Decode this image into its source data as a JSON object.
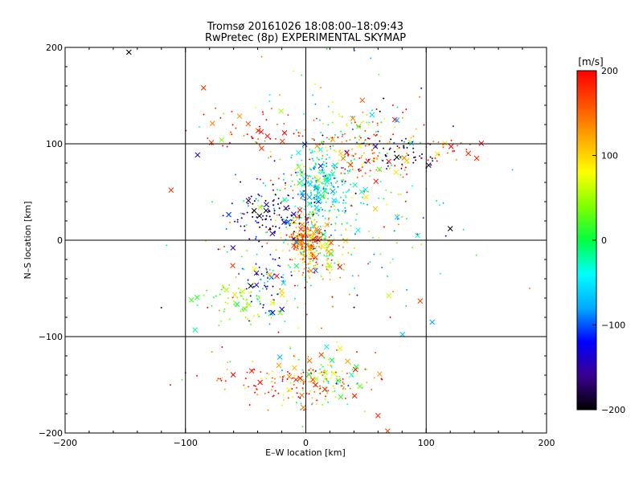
{
  "chart_data": {
    "type": "scatter",
    "title": "Tromsø 20161026 18:08:00–18:09:43",
    "subtitle": "RwPretec (8p) EXPERIMENTAL SKYMAP",
    "xlabel": "E–W location [km]",
    "ylabel": "N–S location [km]",
    "xlim": [
      -200,
      200
    ],
    "ylim": [
      -200,
      200
    ],
    "xticks": [
      "−200",
      "−100",
      "0",
      "100",
      "200"
    ],
    "yticks": [
      "−200",
      "−100",
      "0",
      "100",
      "200"
    ],
    "grid": true,
    "markers": [
      "dot",
      "x"
    ],
    "colorbar": {
      "label": "[m/s]",
      "range": [
        -200,
        200
      ],
      "ticks": [
        "−200",
        "−100",
        "0",
        "100",
        "200"
      ],
      "colors": [
        "#000000",
        "#3a0090",
        "#0000ff",
        "#00aaff",
        "#00ffff",
        "#00ff40",
        "#80ff00",
        "#ffff00",
        "#ffaa00",
        "#ff5000",
        "#ff0000"
      ]
    },
    "clusters": [
      {
        "x": 12,
        "y": 55,
        "sx": 12,
        "sy": 22,
        "n": 260,
        "v": -40,
        "vs": 45
      },
      {
        "x": 0,
        "y": 0,
        "sx": 7,
        "sy": 12,
        "n": 220,
        "v": 140,
        "vs": 40
      },
      {
        "x": 10,
        "y": -15,
        "sx": 12,
        "sy": 15,
        "n": 120,
        "v": 100,
        "vs": 60
      },
      {
        "x": -30,
        "y": 25,
        "sx": 15,
        "sy": 12,
        "n": 110,
        "v": -160,
        "vs": 60
      },
      {
        "x": 45,
        "y": 100,
        "sx": 20,
        "sy": 20,
        "n": 110,
        "v": 150,
        "vs": 60
      },
      {
        "x": 40,
        "y": 90,
        "sx": 35,
        "sy": 40,
        "n": 150,
        "v": 10,
        "vs": 90
      },
      {
        "x": 80,
        "y": 90,
        "sx": 18,
        "sy": 10,
        "n": 50,
        "v": -180,
        "vs": 30
      },
      {
        "x": 15,
        "y": -145,
        "sx": 18,
        "sy": 14,
        "n": 130,
        "v": 60,
        "vs": 80
      },
      {
        "x": -25,
        "y": -145,
        "sx": 35,
        "sy": 14,
        "n": 110,
        "v": 170,
        "vs": 50
      },
      {
        "x": -55,
        "y": -65,
        "sx": 15,
        "sy": 10,
        "n": 70,
        "v": 40,
        "vs": 30
      },
      {
        "x": -30,
        "y": -45,
        "sx": 10,
        "sy": 15,
        "n": 70,
        "v": -110,
        "vs": 50
      },
      {
        "x": -40,
        "y": 115,
        "sx": 25,
        "sy": 15,
        "n": 50,
        "v": 170,
        "vs": 40
      },
      {
        "x": 20,
        "y": 20,
        "sx": 50,
        "sy": 60,
        "n": 160,
        "v": 40,
        "vs": 110
      },
      {
        "x": -10,
        "y": -30,
        "sx": 40,
        "sy": 50,
        "n": 70,
        "v": 80,
        "vs": 100
      },
      {
        "x": 110,
        "y": 95,
        "sx": 18,
        "sy": 8,
        "n": 25,
        "v": 170,
        "vs": 40
      }
    ],
    "points": [
      {
        "x": -147,
        "y": 195,
        "v": -200,
        "m": "x"
      },
      {
        "x": -112,
        "y": 52,
        "v": 180,
        "m": "x"
      },
      {
        "x": -95,
        "y": -62,
        "v": 20,
        "m": "x"
      },
      {
        "x": -92,
        "y": -93,
        "v": -20,
        "m": "x"
      },
      {
        "x": 55,
        "y": 130,
        "v": -60,
        "m": "x"
      },
      {
        "x": 60,
        "y": -182,
        "v": 180,
        "m": "x"
      },
      {
        "x": 95,
        "y": -63,
        "v": 170,
        "m": "x"
      },
      {
        "x": 105,
        "y": -85,
        "v": -80,
        "m": "x"
      },
      {
        "x": 120,
        "y": 12,
        "v": -200,
        "m": "x"
      },
      {
        "x": 135,
        "y": 90,
        "v": 180,
        "m": "x"
      },
      {
        "x": 142,
        "y": 85,
        "v": 180,
        "m": "x"
      },
      {
        "x": 186,
        "y": -50,
        "v": 140,
        "m": "dot"
      },
      {
        "x": -120,
        "y": -70,
        "v": -180,
        "m": "dot"
      },
      {
        "x": -85,
        "y": 158,
        "v": 180,
        "m": "x"
      },
      {
        "x": -70,
        "y": 104,
        "v": 40,
        "m": "x"
      },
      {
        "x": 68,
        "y": -198,
        "v": 170,
        "m": "x"
      }
    ]
  }
}
